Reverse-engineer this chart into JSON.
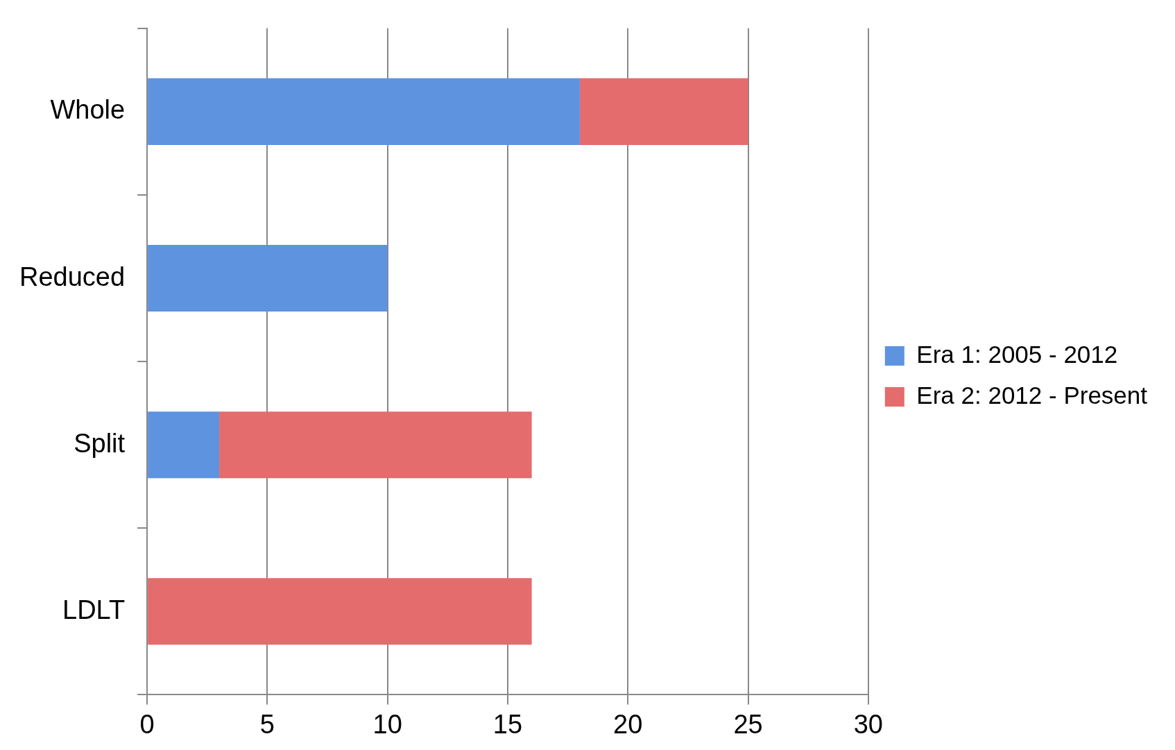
{
  "chart_data": {
    "type": "bar",
    "orientation": "horizontal",
    "stacked": true,
    "categories": [
      "Whole",
      "Reduced",
      "Split",
      "LDLT"
    ],
    "series": [
      {
        "name": "Era 1: 2005 - 2012",
        "color": "#5e93e0",
        "values": [
          18,
          10,
          3,
          0
        ]
      },
      {
        "name": "Era 2: 2012 - Present",
        "color": "#e46c6c",
        "values": [
          7,
          0,
          13,
          16
        ]
      }
    ],
    "xlim": [
      0,
      30
    ],
    "xticks": [
      0,
      5,
      10,
      15,
      20,
      25,
      30
    ],
    "grid": "x",
    "legend": "right"
  }
}
